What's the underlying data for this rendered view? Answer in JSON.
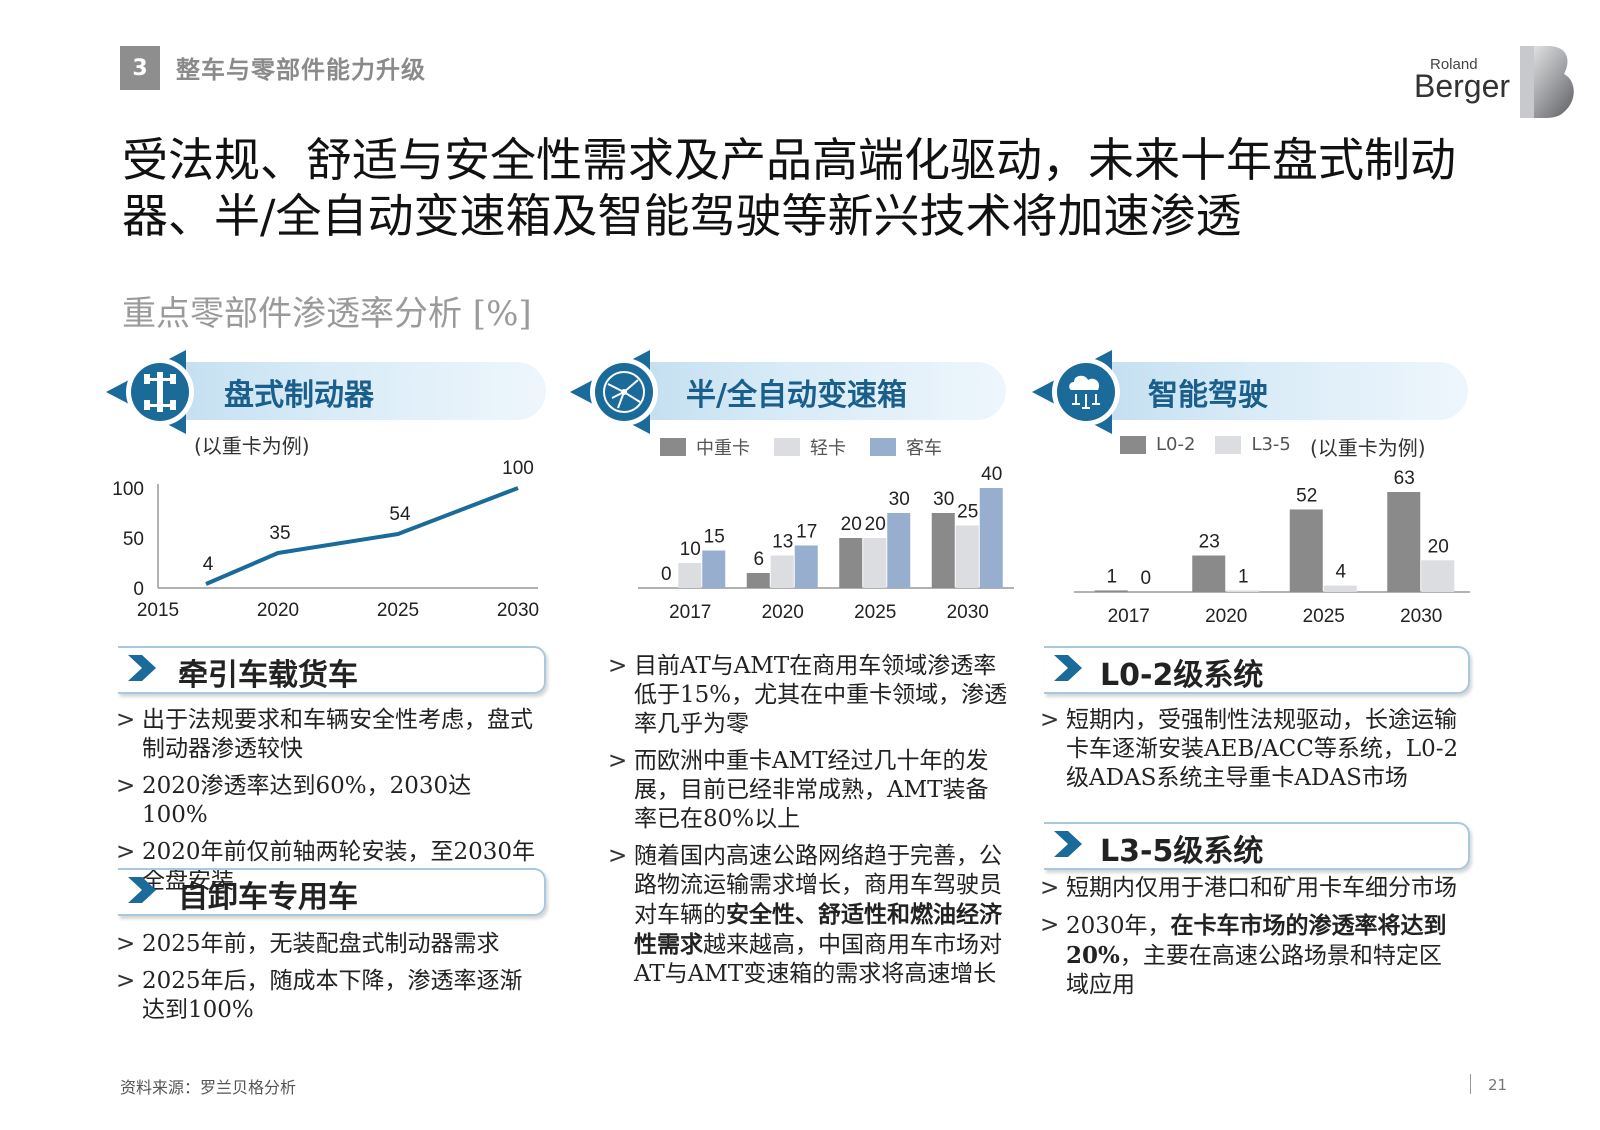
{
  "header": {
    "section_number": "3",
    "section_title": "整车与零部件能力升级"
  },
  "logo": {
    "line1": "Roland",
    "line2": "Berger"
  },
  "title": "受法规、舒适与安全性需求及产品高端化驱动，未来十年盘式制动器、半/全自动变速箱及智能驾驶等新兴技术将加速渗透",
  "subtitle": "重点零部件渗透率分析 [%]",
  "colors": {
    "accent": "#1a6a9a",
    "dark_gray": "#8a8a8a",
    "light_gray": "#dcdde0",
    "blue_gray": "#97aecf"
  },
  "panels": [
    {
      "title": "盘式制动器",
      "icon": "axle-icon",
      "note": "(以重卡为例)",
      "subsections": [
        {
          "label": "牵引车载货车",
          "bullets": [
            "出于法规要求和车辆安全性考虑，盘式制动器渗透较快",
            "2020渗透率达到60%，2030达100%",
            "2020年前仅前轴两轮安装，至2030年全盘安装"
          ]
        },
        {
          "label": "自卸车专用车",
          "bullets": [
            "2025年前，无装配盘式制动器需求",
            "2025年后，随成本下降，渗透率逐渐达到100%"
          ]
        }
      ]
    },
    {
      "title": "半/全自动变速箱",
      "icon": "gear-network-icon",
      "bullets": [
        "目前AT与AMT在商用车领域渗透率低于15%，尤其在中重卡领域，渗透率几乎为零",
        "而欧洲中重卡AMT经过几十年的发展，目前已经非常成熟，AMT装备率已在80%以上"
      ],
      "bullet3": {
        "pre": "随着国内高速公路网络趋于完善，公路物流运输需求增长，商用车驾驶员对车辆的",
        "bold": "安全性、舒适性和燃油经济性需求",
        "post": "越来越高，中国商用车市场对AT与AMT变速箱的需求将高速增长"
      }
    },
    {
      "title": "智能驾驶",
      "icon": "cloud-network-icon",
      "note": "(以重卡为例)",
      "subsections": [
        {
          "label": "L0-2级系统",
          "bullets": [
            "短期内，受强制性法规驱动，长途运输卡车逐渐安装AEB/ACC等系统，L0-2级ADAS系统主导重卡ADAS市场"
          ]
        },
        {
          "label": "L3-5级系统",
          "bullets": [
            "短期内仅用于港口和矿用卡车细分市场"
          ],
          "bullet_rich": {
            "pre": "2030年，",
            "bold": "在卡车市场的渗透率将达到20%",
            "post": "，主要在高速公路场景和特定区域应用"
          }
        }
      ]
    }
  ],
  "chart_data": [
    {
      "type": "line",
      "x": [
        2017,
        2020,
        2025,
        2030
      ],
      "values": [
        4,
        35,
        54,
        100
      ],
      "xticks": [
        "2015",
        "2020",
        "2025",
        "2030"
      ],
      "yticks": [
        "0",
        "50",
        "100"
      ],
      "xlim": [
        2015,
        2030
      ],
      "ylim": [
        0,
        100
      ]
    },
    {
      "type": "bar",
      "categories": [
        "2017",
        "2020",
        "2025",
        "2030"
      ],
      "series": [
        {
          "name": "中重卡",
          "values": [
            0,
            6,
            20,
            30
          ]
        },
        {
          "name": "轻卡",
          "values": [
            10,
            13,
            20,
            25
          ]
        },
        {
          "name": "客车",
          "values": [
            15,
            17,
            30,
            40
          ]
        }
      ],
      "ylim": [
        0,
        40
      ],
      "legend": "top"
    },
    {
      "type": "bar",
      "categories": [
        "2017",
        "2020",
        "2025",
        "2030"
      ],
      "series": [
        {
          "name": "L0-2",
          "values": [
            1,
            23,
            52,
            63
          ]
        },
        {
          "name": "L3-5",
          "values": [
            0,
            1,
            4,
            20
          ]
        }
      ],
      "ylim": [
        0,
        63
      ],
      "legend": "top"
    }
  ],
  "footer": {
    "source": "资料来源：罗兰贝格分析",
    "page": "21"
  }
}
